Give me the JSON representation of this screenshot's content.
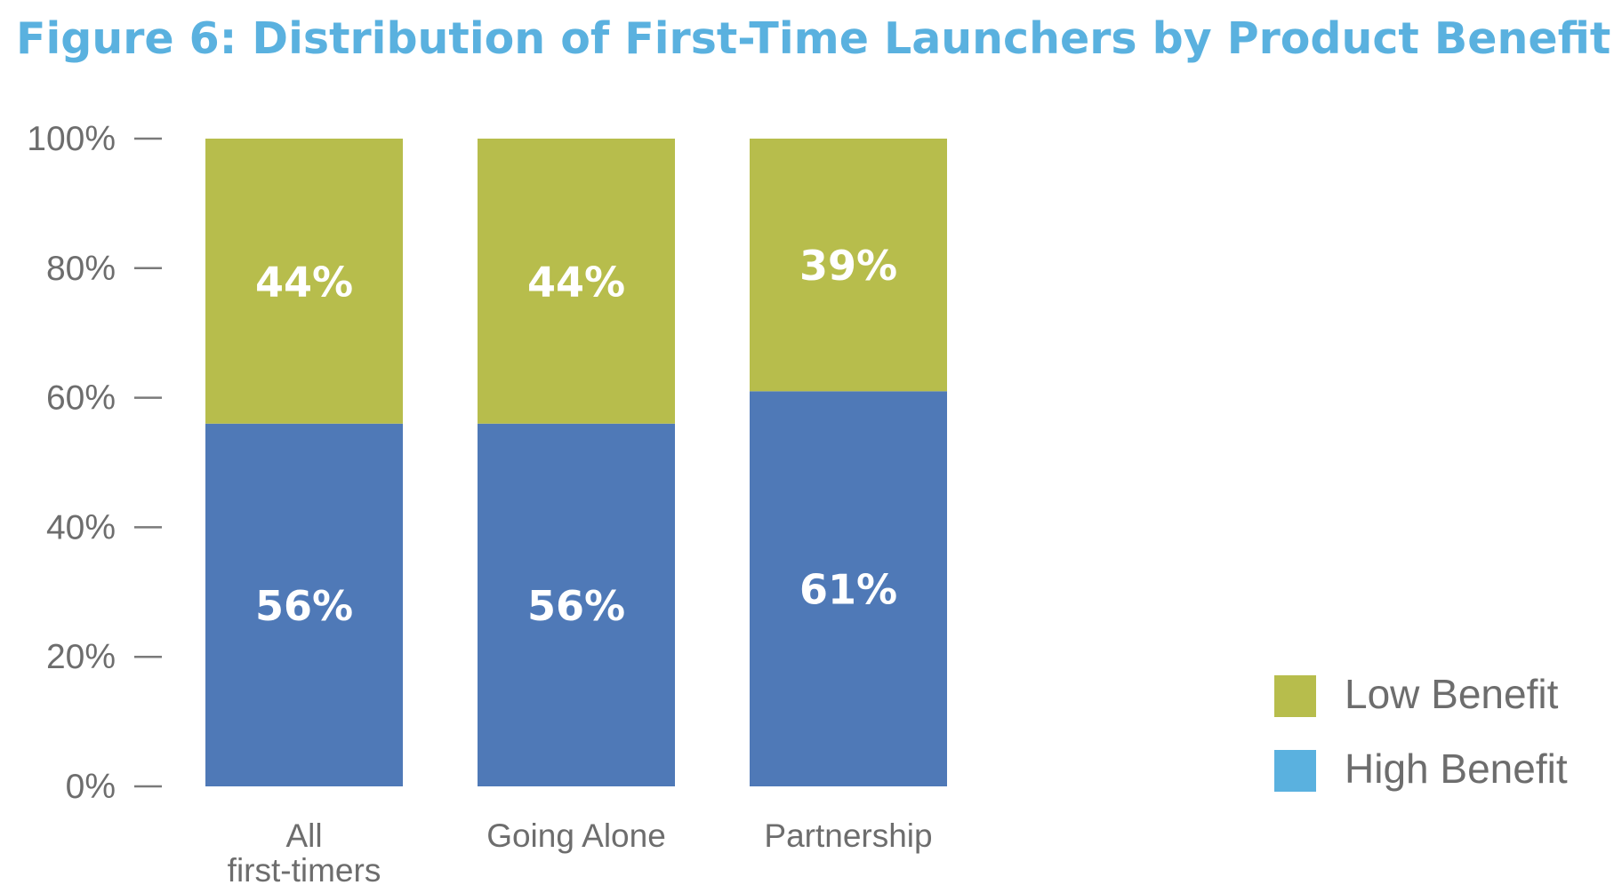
{
  "figure": {
    "title": "Figure 6:  Distribution of First-Time Launchers by Product Benefit"
  },
  "chart_data": {
    "type": "bar",
    "stacked": true,
    "title": "Figure 6:  Distribution of First-Time Launchers by Product Benefit",
    "xlabel": "",
    "ylabel": "",
    "ylim": [
      0,
      100
    ],
    "y_ticks": [
      "0%",
      "20%",
      "40%",
      "60%",
      "80%",
      "100%"
    ],
    "categories": [
      [
        "All",
        "first-timers"
      ],
      [
        "Going Alone"
      ],
      [
        "Partnership"
      ]
    ],
    "series": [
      {
        "name": "High Benefit",
        "values": [
          56,
          56,
          61
        ],
        "labels": [
          "56%",
          "56%",
          "61%"
        ],
        "color": "#4f79b7"
      },
      {
        "name": "Low Benefit",
        "values": [
          44,
          44,
          39
        ],
        "labels": [
          "44%",
          "44%",
          "39%"
        ],
        "color": "#b7bd4c"
      }
    ],
    "legend": {
      "position": "bottom-right",
      "entries": [
        {
          "label": "Low Benefit",
          "color": "#b7bd4c"
        },
        {
          "label": "High Benefit",
          "color": "#5ab1df"
        }
      ]
    },
    "grid": false,
    "colors": {
      "title": "#5ab1df",
      "axis_text": "#6d6d6d",
      "bar_label": "#ffffff"
    }
  }
}
